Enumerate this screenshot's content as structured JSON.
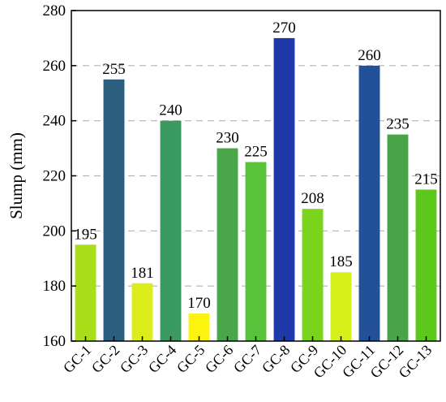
{
  "chart_data": {
    "type": "bar",
    "title": "",
    "xlabel": "",
    "ylabel": "Slump (mm)",
    "ylim": [
      160,
      280
    ],
    "yticks": [
      160,
      180,
      200,
      220,
      240,
      260,
      280
    ],
    "grid": "horizontal dashed",
    "legend": "none",
    "categories": [
      "GC-1",
      "GC-2",
      "GC-3",
      "GC-4",
      "GC-5",
      "GC-6",
      "GC-7",
      "GC-8",
      "GC-9",
      "GC-10",
      "GC-11",
      "GC-12",
      "GC-13"
    ],
    "values": [
      195,
      255,
      181,
      240,
      170,
      230,
      225,
      270,
      208,
      185,
      260,
      235,
      215
    ],
    "data_labels": [
      "195",
      "255",
      "181",
      "240",
      "170",
      "230",
      "225",
      "270",
      "208",
      "185",
      "260",
      "235",
      "215"
    ],
    "bar_colors": [
      "#a8de1a",
      "#2c5e7e",
      "#dcee1a",
      "#3b9a62",
      "#fcf40e",
      "#4aa64a",
      "#58c23a",
      "#1f3aa8",
      "#7ad41c",
      "#d8f01a",
      "#22519a",
      "#49a348",
      "#5cc81c"
    ]
  }
}
